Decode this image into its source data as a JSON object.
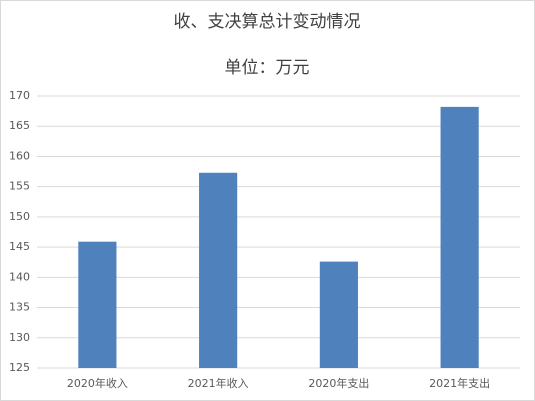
{
  "chart_data": {
    "type": "bar",
    "title": "收、支决算总计变动情况",
    "subtitle": "单位：万元",
    "categories": [
      "2020年收入",
      "2021年收入",
      "2020年支出",
      "2021年支出"
    ],
    "values": [
      145.9,
      157.3,
      142.6,
      168.2
    ],
    "color": "#4f81bd",
    "ylim": [
      125,
      170
    ],
    "yticks": [
      125,
      130,
      135,
      140,
      145,
      150,
      155,
      160,
      165,
      170
    ],
    "grid": true
  }
}
